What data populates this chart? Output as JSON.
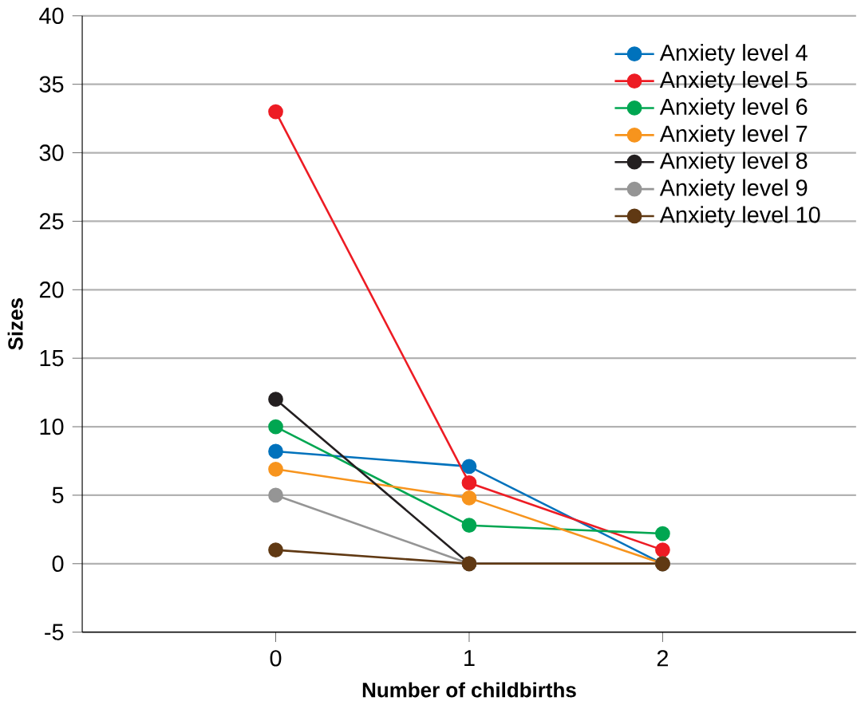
{
  "chart_data": {
    "type": "line",
    "xlabel": "Number of childbirths",
    "ylabel": "Sizes",
    "x": [
      0,
      1,
      2
    ],
    "xlim": [
      -1,
      3
    ],
    "xticks": [
      0,
      1,
      2
    ],
    "ylim": [
      -5,
      40
    ],
    "yticks": [
      -5,
      0,
      5,
      10,
      15,
      20,
      25,
      30,
      35,
      40
    ],
    "grid": "y",
    "legend": "top right",
    "marker": "circle",
    "series": [
      {
        "name": "Anxiety level 4",
        "color": "#0072bc",
        "values": [
          8.2,
          7.1,
          0
        ]
      },
      {
        "name": "Anxiety level 5",
        "color": "#ed1c24",
        "values": [
          33,
          5.9,
          1
        ]
      },
      {
        "name": "Anxiety level 6",
        "color": "#00a651",
        "values": [
          10,
          2.8,
          2.2
        ]
      },
      {
        "name": "Anxiety level 7",
        "color": "#f7941d",
        "values": [
          6.9,
          4.8,
          0
        ]
      },
      {
        "name": "Anxiety level 8",
        "color": "#231f20",
        "values": [
          12,
          0,
          0
        ]
      },
      {
        "name": "Anxiety level 9",
        "color": "#959595",
        "values": [
          5,
          0,
          0
        ]
      },
      {
        "name": "Anxiety level 10",
        "color": "#603913",
        "values": [
          1,
          0,
          0
        ]
      }
    ]
  }
}
